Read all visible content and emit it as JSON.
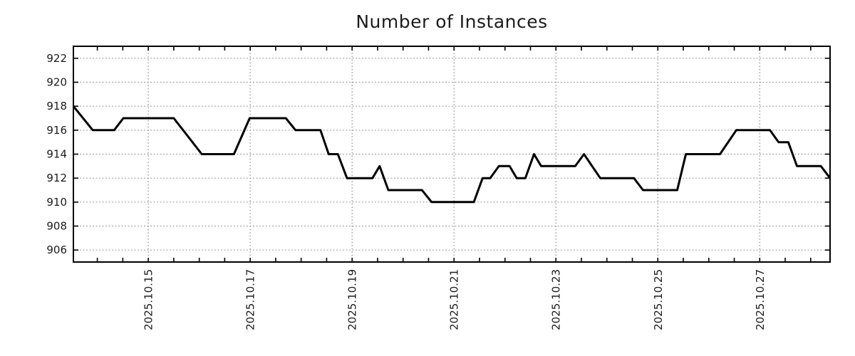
{
  "chart_data": {
    "type": "line",
    "title": "Number of Instances",
    "xlabel": "",
    "ylabel": "",
    "x_unit": "day of October 2025 (decimal day-of-month)",
    "x_range": [
      13.53,
      28.38
    ],
    "y_range": [
      905,
      923
    ],
    "y_ticks": [
      906,
      908,
      910,
      912,
      914,
      916,
      918,
      920,
      922
    ],
    "x_major_ticks": [
      {
        "t": 15,
        "label": "2025.10.15"
      },
      {
        "t": 17,
        "label": "2025.10.17"
      },
      {
        "t": 19,
        "label": "2025.10.19"
      },
      {
        "t": 21,
        "label": "2025.10.21"
      },
      {
        "t": 23,
        "label": "2025.10.23"
      },
      {
        "t": 25,
        "label": "2025.10.25"
      },
      {
        "t": 27,
        "label": "2025.10.27"
      }
    ],
    "x_minor_tick_start": 14.0,
    "x_minor_tick_end": 28.0,
    "x_minor_tick_step": 0.5,
    "grid": "dotted",
    "legend": "none",
    "line_color": "#000000",
    "grid_color": "#a3a3a3",
    "text_color": "#1c1c1c",
    "series": [
      {
        "name": "Number of Instances",
        "points": [
          [
            13.53,
            918
          ],
          [
            13.91,
            916
          ],
          [
            14.33,
            916
          ],
          [
            14.51,
            917
          ],
          [
            15.5,
            917
          ],
          [
            16.05,
            914
          ],
          [
            16.68,
            914
          ],
          [
            16.99,
            917
          ],
          [
            17.7,
            917
          ],
          [
            17.89,
            916
          ],
          [
            18.38,
            916
          ],
          [
            18.54,
            914
          ],
          [
            18.72,
            914
          ],
          [
            18.9,
            912
          ],
          [
            19.4,
            912
          ],
          [
            19.54,
            913
          ],
          [
            19.71,
            911
          ],
          [
            20.37,
            911
          ],
          [
            20.56,
            910
          ],
          [
            21.39,
            910
          ],
          [
            21.56,
            912
          ],
          [
            21.71,
            912
          ],
          [
            21.88,
            913
          ],
          [
            22.09,
            913
          ],
          [
            22.23,
            912
          ],
          [
            22.4,
            912
          ],
          [
            22.57,
            914
          ],
          [
            22.71,
            913
          ],
          [
            23.38,
            913
          ],
          [
            23.55,
            914
          ],
          [
            23.87,
            912
          ],
          [
            24.53,
            912
          ],
          [
            24.71,
            911
          ],
          [
            25.38,
            911
          ],
          [
            25.55,
            914
          ],
          [
            26.22,
            914
          ],
          [
            26.54,
            916
          ],
          [
            27.2,
            916
          ],
          [
            27.37,
            915
          ],
          [
            27.56,
            915
          ],
          [
            27.73,
            913
          ],
          [
            28.2,
            913
          ],
          [
            28.38,
            912
          ]
        ]
      }
    ]
  }
}
